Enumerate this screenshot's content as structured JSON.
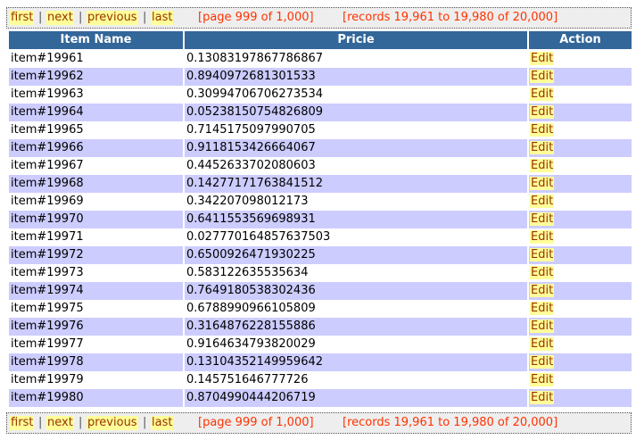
{
  "pager": {
    "first": "first",
    "next": "next",
    "previous": "previous",
    "last": "last",
    "separator": "|",
    "page_info": "[page 999 of 1,000]",
    "records_info": "[records 19,961 to 19,980 of 20,000]"
  },
  "table": {
    "headers": [
      "Item Name",
      "Pricie",
      "Action"
    ],
    "rows": [
      {
        "name": "item#19961",
        "price": "0.13083197867786867",
        "action": "Edit"
      },
      {
        "name": "item#19962",
        "price": "0.8940972681301533",
        "action": "Edit"
      },
      {
        "name": "item#19963",
        "price": "0.30994706706273534",
        "action": "Edit"
      },
      {
        "name": "item#19964",
        "price": "0.05238150754826809",
        "action": "Edit"
      },
      {
        "name": "item#19965",
        "price": "0.7145175097990705",
        "action": "Edit"
      },
      {
        "name": "item#19966",
        "price": "0.9118153426664067",
        "action": "Edit"
      },
      {
        "name": "item#19967",
        "price": "0.4452633702080603",
        "action": "Edit"
      },
      {
        "name": "item#19968",
        "price": "0.14277171763841512",
        "action": "Edit"
      },
      {
        "name": "item#19969",
        "price": "0.342207098012173",
        "action": "Edit"
      },
      {
        "name": "item#19970",
        "price": "0.6411553569698931",
        "action": "Edit"
      },
      {
        "name": "item#19971",
        "price": "0.027770164857637503",
        "action": "Edit"
      },
      {
        "name": "item#19972",
        "price": "0.6500926471930225",
        "action": "Edit"
      },
      {
        "name": "item#19973",
        "price": "0.583122635535634",
        "action": "Edit"
      },
      {
        "name": "item#19974",
        "price": "0.7649180538302436",
        "action": "Edit"
      },
      {
        "name": "item#19975",
        "price": "0.6788990966105809",
        "action": "Edit"
      },
      {
        "name": "item#19976",
        "price": "0.3164876228155886",
        "action": "Edit"
      },
      {
        "name": "item#19977",
        "price": "0.9164634793820029",
        "action": "Edit"
      },
      {
        "name": "item#19978",
        "price": "0.13104352149959642",
        "action": "Edit"
      },
      {
        "name": "item#19979",
        "price": "0.145751646777726",
        "action": "Edit"
      },
      {
        "name": "item#19980",
        "price": "0.8704990444206719",
        "action": "Edit"
      }
    ]
  },
  "colors": {
    "header_bg": "#336699",
    "row_alt_bg": "#ccccff",
    "link_bg": "#ffff99",
    "link_text": "#993300",
    "info_text": "#ff3300",
    "pager_bg": "#eeeeee"
  }
}
